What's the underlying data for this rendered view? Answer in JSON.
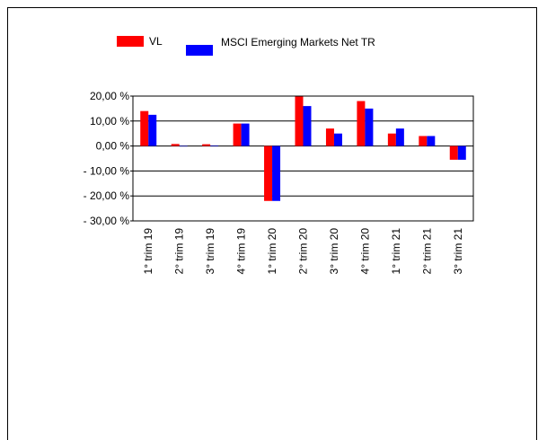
{
  "chart_data": {
    "type": "bar",
    "categories": [
      "1° trim 19",
      "2° trim 19",
      "3° trim 19",
      "4° trim 19",
      "1° trim 20",
      "2° trim 20",
      "3° trim 20",
      "4° trim 20",
      "1° trim 21",
      "2° trim 21",
      "3° trim 21"
    ],
    "series": [
      {
        "name": "VL",
        "color": "#ff0000",
        "values": [
          14,
          0.8,
          0.7,
          9,
          -22,
          20,
          7,
          18,
          5,
          4,
          -5.5
        ]
      },
      {
        "name": "MSCI Emerging Markets Net TR",
        "color": "#0000ff",
        "values": [
          12.5,
          0,
          0.2,
          9,
          -22,
          16,
          5,
          15,
          7,
          4,
          -5.5
        ]
      }
    ],
    "ylim": [
      -30,
      20
    ],
    "yticks": [
      {
        "value": -30,
        "label": "- 30,00 %"
      },
      {
        "value": -20,
        "label": "- 20,00 %"
      },
      {
        "value": -10,
        "label": "- 10,00 %"
      },
      {
        "value": 0,
        "label": "0,00 %"
      },
      {
        "value": 10,
        "label": "10,00 %"
      },
      {
        "value": 20,
        "label": "20,00 %"
      }
    ],
    "grid": true
  }
}
